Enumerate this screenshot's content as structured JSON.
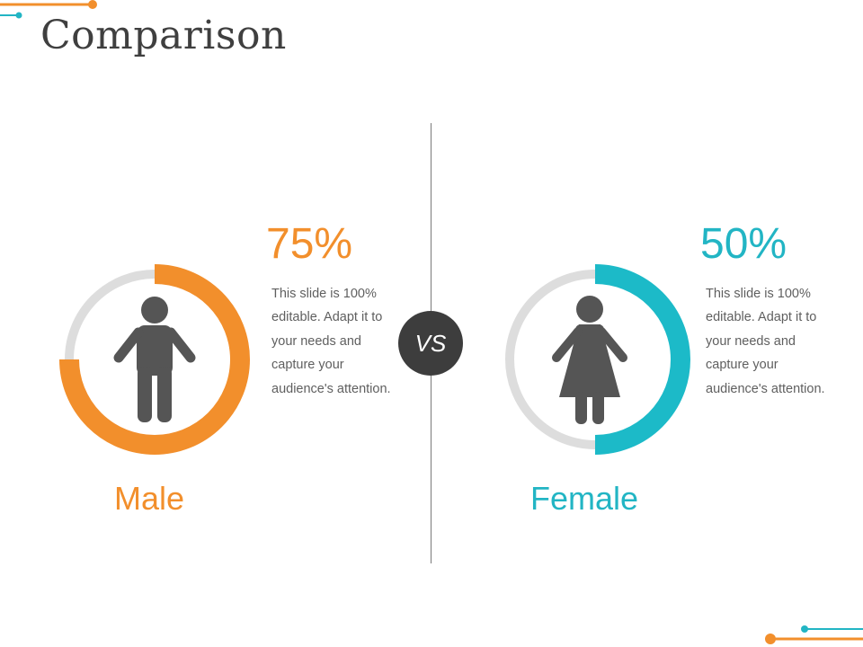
{
  "slide": {
    "title": "Comparison"
  },
  "vs_label": "VS",
  "colors": {
    "male_accent": "#f28f2c",
    "female_accent": "#1cbac8",
    "ring_track": "#dddddd",
    "icon": "#555555",
    "vs_badge": "#3d3d3d"
  },
  "male": {
    "label": "Male",
    "percent_text": "75%",
    "percent_value": 75,
    "icon": "male-person-icon",
    "description_lines": [
      "This slide is 100%",
      "editable. Adapt it to",
      "your needs and",
      "capture your",
      "audience's attention."
    ]
  },
  "female": {
    "label": "Female",
    "percent_text": "50%",
    "percent_value": 50,
    "icon": "female-person-icon",
    "description_lines": [
      "This slide is 100%",
      "editable. Adapt it to",
      "your needs and",
      "capture your",
      "audience's attention."
    ]
  }
}
